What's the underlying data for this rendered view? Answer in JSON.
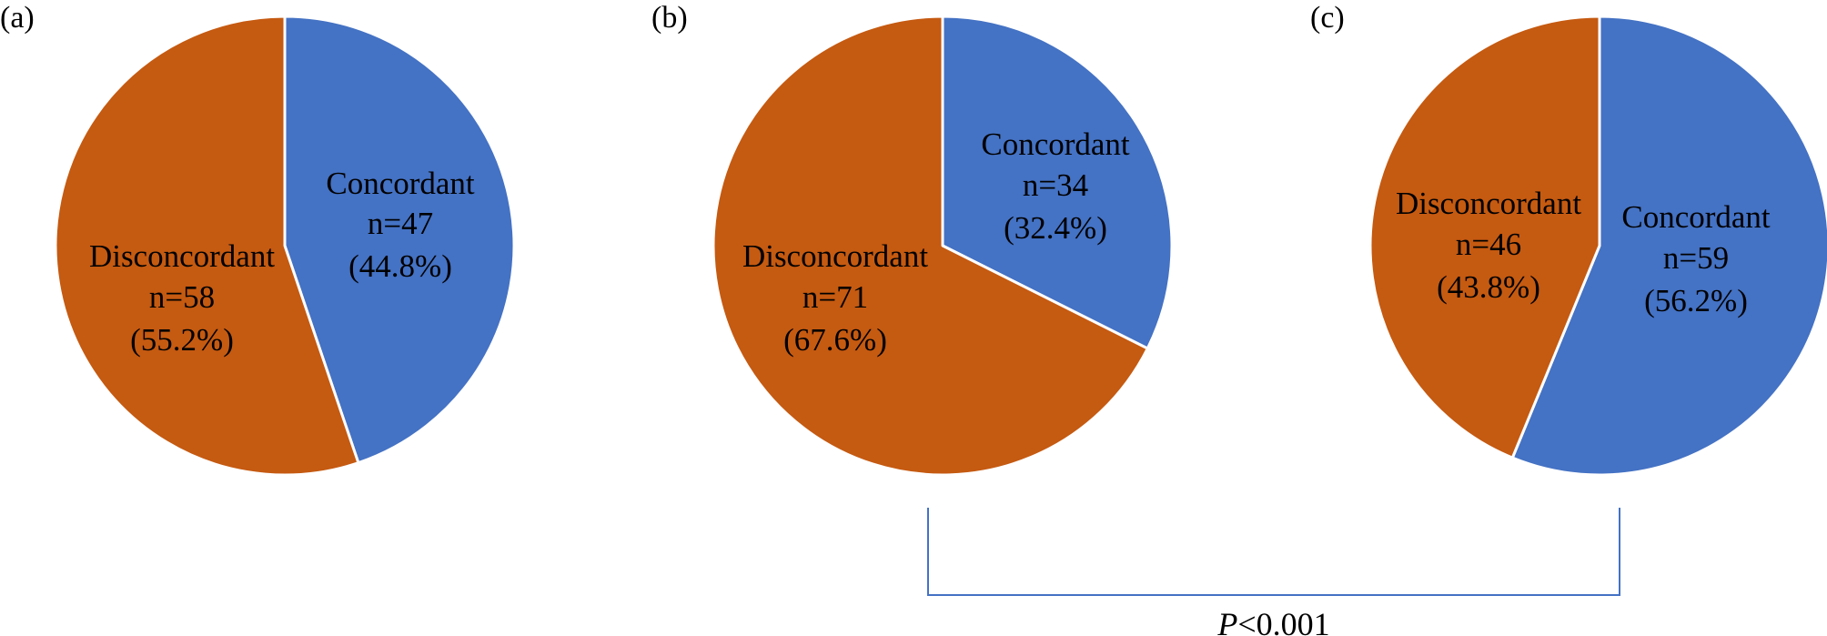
{
  "chart_data": [
    {
      "type": "pie",
      "panel_label": "(a)",
      "slices": [
        {
          "category": "Concordant",
          "n": "n=47",
          "pct": "(44.8%)",
          "value": 44.8,
          "color": "#4472C4"
        },
        {
          "category": "Disconcordant",
          "n": "n=58",
          "pct": "(55.2%)",
          "value": 55.2,
          "color": "#C55A11"
        }
      ]
    },
    {
      "type": "pie",
      "panel_label": "(b)",
      "slices": [
        {
          "category": "Concordant",
          "n": "n=34",
          "pct": "(32.4%)",
          "value": 32.4,
          "color": "#4472C4"
        },
        {
          "category": "Disconcordant",
          "n": "n=71",
          "pct": "(67.6%)",
          "value": 67.6,
          "color": "#C55A11"
        }
      ]
    },
    {
      "type": "pie",
      "panel_label": "(c)",
      "slices": [
        {
          "category": "Concordant",
          "n": "n=59",
          "pct": "(56.2%)",
          "value": 56.2,
          "color": "#4472C4"
        },
        {
          "category": "Disconcordant",
          "n": "n=46",
          "pct": "(43.8%)",
          "value": 43.8,
          "color": "#C55A11"
        }
      ]
    }
  ],
  "comparison": {
    "between": [
      "(b)",
      "(c)"
    ],
    "p_symbol": "P",
    "p_rest": "<0.001",
    "bracket_color": "#4472C4"
  }
}
